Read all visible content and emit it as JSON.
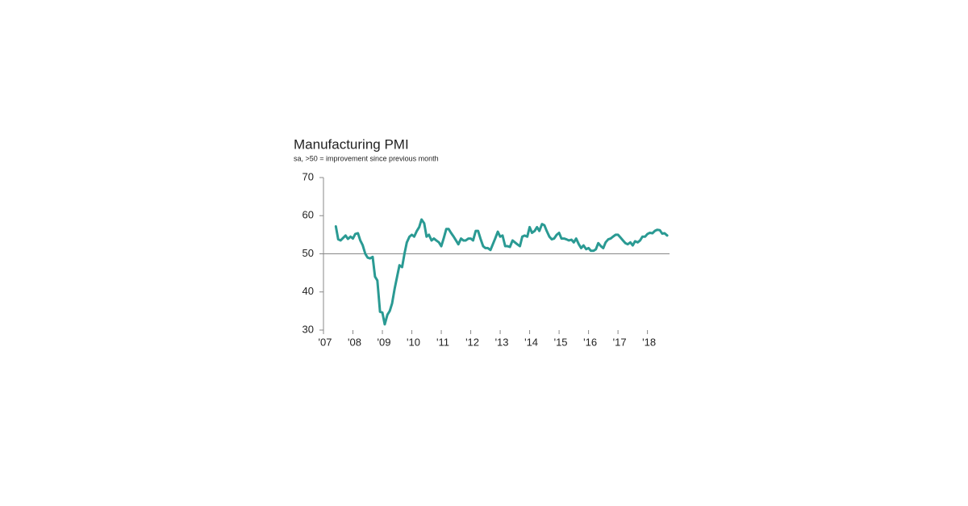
{
  "chart_data": {
    "type": "line",
    "title": "Manufacturing PMI",
    "subtitle": "sa, >50 = improvement since previous month",
    "x": [
      2007.42,
      2007.5,
      2007.58,
      2007.67,
      2007.75,
      2007.83,
      2007.92,
      2008.0,
      2008.08,
      2008.17,
      2008.25,
      2008.33,
      2008.42,
      2008.5,
      2008.58,
      2008.67,
      2008.75,
      2008.83,
      2008.92,
      2009.0,
      2009.08,
      2009.17,
      2009.25,
      2009.33,
      2009.42,
      2009.5,
      2009.58,
      2009.67,
      2009.75,
      2009.83,
      2009.92,
      2010.0,
      2010.08,
      2010.17,
      2010.25,
      2010.33,
      2010.42,
      2010.5,
      2010.58,
      2010.67,
      2010.75,
      2010.83,
      2010.92,
      2011.0,
      2011.08,
      2011.17,
      2011.25,
      2011.33,
      2011.42,
      2011.5,
      2011.58,
      2011.67,
      2011.75,
      2011.83,
      2011.92,
      2012.0,
      2012.08,
      2012.17,
      2012.25,
      2012.33,
      2012.42,
      2012.5,
      2012.58,
      2012.67,
      2012.75,
      2012.83,
      2012.92,
      2013.0,
      2013.08,
      2013.17,
      2013.25,
      2013.33,
      2013.42,
      2013.5,
      2013.58,
      2013.67,
      2013.75,
      2013.83,
      2013.92,
      2014.0,
      2014.08,
      2014.17,
      2014.25,
      2014.33,
      2014.42,
      2014.5,
      2014.58,
      2014.67,
      2014.75,
      2014.83,
      2014.92,
      2015.0,
      2015.08,
      2015.17,
      2015.25,
      2015.33,
      2015.42,
      2015.5,
      2015.58,
      2015.67,
      2015.75,
      2015.83,
      2015.92,
      2016.0,
      2016.08,
      2016.17,
      2016.25,
      2016.33,
      2016.42,
      2016.5,
      2016.58,
      2016.67,
      2016.75,
      2016.83,
      2016.92,
      2017.0,
      2017.08,
      2017.17,
      2017.25,
      2017.33,
      2017.42,
      2017.5,
      2017.58,
      2017.67,
      2017.75,
      2017.83,
      2017.92,
      2018.0,
      2018.08,
      2018.17,
      2018.25,
      2018.33,
      2018.42,
      2018.5,
      2018.58,
      2018.67
    ],
    "series": [
      {
        "name": "Manufacturing PMI",
        "color": "#2a9a93",
        "values": [
          57.2,
          53.8,
          53.5,
          54.2,
          54.8,
          53.9,
          54.5,
          54,
          55.2,
          55.4,
          53.5,
          52.3,
          50,
          49,
          48.8,
          49.2,
          44,
          43,
          34.8,
          34.6,
          31.5,
          34,
          35,
          37,
          41,
          44,
          47,
          46.5,
          50,
          53,
          54.5,
          55,
          54.5,
          56,
          57,
          59,
          58,
          54.5,
          55,
          53.5,
          54,
          53.5,
          53,
          52,
          54,
          56.5,
          56.5,
          55.5,
          54.5,
          53.5,
          52.5,
          54,
          53.5,
          53.5,
          54,
          54,
          53.5,
          56,
          56,
          54,
          52,
          51.5,
          51.5,
          51,
          52.5,
          54,
          55.8,
          54.5,
          54.8,
          52,
          52,
          51.8,
          53.5,
          53,
          52.5,
          52,
          54.5,
          54.8,
          54.5,
          57,
          55.5,
          56,
          57,
          56,
          57.8,
          57.5,
          56,
          54.5,
          53.8,
          54,
          55,
          55.5,
          54,
          54,
          53.8,
          53.5,
          53.7,
          53,
          54,
          52.5,
          51.5,
          52.2,
          51.2,
          51.5,
          50.8,
          50.8,
          51.2,
          52.8,
          52,
          51.5,
          53,
          53.8,
          54,
          54.5,
          55,
          55,
          54.3,
          53.5,
          52.8,
          52.5,
          53,
          52.2,
          53.3,
          53,
          53.5,
          54.5,
          54.5,
          55.2,
          55.5,
          55.4,
          56,
          56.3,
          56.2,
          55.3,
          55.4,
          54.8
        ]
      }
    ],
    "xlim": [
      2007,
      2018.75
    ],
    "xticks": [
      {
        "value": 2007,
        "label": "'07"
      },
      {
        "value": 2008,
        "label": "'08"
      },
      {
        "value": 2009,
        "label": "'09"
      },
      {
        "value": 2010,
        "label": "'10"
      },
      {
        "value": 2011,
        "label": "'11"
      },
      {
        "value": 2012,
        "label": "'12"
      },
      {
        "value": 2013,
        "label": "'13"
      },
      {
        "value": 2014,
        "label": "'14"
      },
      {
        "value": 2015,
        "label": "'15"
      },
      {
        "value": 2016,
        "label": "'16"
      },
      {
        "value": 2017,
        "label": "'17"
      },
      {
        "value": 2018,
        "label": "'18"
      }
    ],
    "ylim": [
      30,
      70
    ],
    "yticks": [
      30,
      40,
      50,
      60,
      70
    ],
    "axis_crossing": 50,
    "grid": false
  }
}
